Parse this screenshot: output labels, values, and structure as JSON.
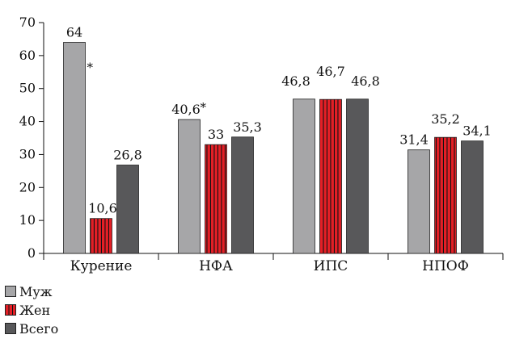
{
  "chart_data": {
    "type": "bar",
    "categories": [
      "Курение",
      "НФА",
      "ИПС",
      "НПОФ"
    ],
    "series": [
      {
        "name": "Муж",
        "values": [
          64,
          40.6,
          46.8,
          31.4
        ],
        "labels": [
          "64",
          "40,6",
          "46,8",
          "31,4"
        ],
        "color": "#a6a6a8",
        "pattern": "solid"
      },
      {
        "name": "Жен",
        "values": [
          10.6,
          33,
          46.7,
          35.2
        ],
        "labels": [
          "10,6",
          "33",
          "46,7",
          "35,2"
        ],
        "color": "#e41f26",
        "pattern": "stripes"
      },
      {
        "name": "Всего",
        "values": [
          26.8,
          35.3,
          46.8,
          34.1
        ],
        "labels": [
          "26,8",
          "35,3",
          "46,8",
          "34,1"
        ],
        "color": "#58585a",
        "pattern": "solid"
      }
    ],
    "annotations": [
      {
        "text": "*",
        "category": 0,
        "series": 0
      },
      {
        "text": "*",
        "category": 1,
        "series": 0
      }
    ],
    "yticks": [
      "0",
      "10",
      "20",
      "30",
      "40",
      "50",
      "60",
      "70"
    ],
    "ylim": [
      0,
      70
    ],
    "legend_position": "bottom-left"
  }
}
